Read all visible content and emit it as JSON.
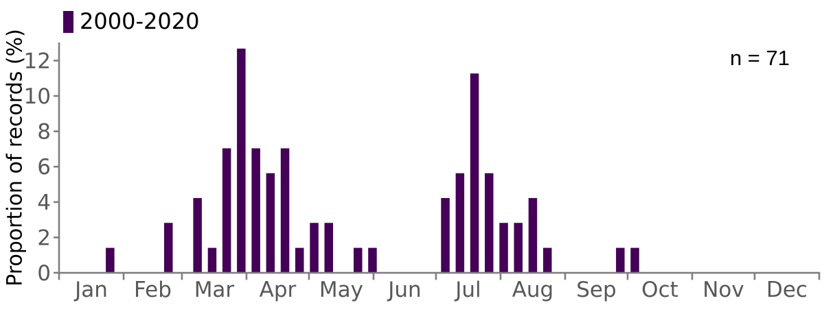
{
  "chart_data": {
    "type": "bar",
    "title": "",
    "legend": {
      "label": "2000-2020",
      "position": "top-left"
    },
    "annotation": "n = 71",
    "n_total": 71,
    "ylabel": "Proportion of records (%)",
    "xlabel": "",
    "x_unit": "week-of-year bins on a day-of-year axis labeled by month",
    "months": [
      "Jan",
      "Feb",
      "Mar",
      "Apr",
      "May",
      "Jun",
      "Jul",
      "Aug",
      "Sep",
      "Oct",
      "Nov",
      "Dec"
    ],
    "month_boundary_days": [
      0,
      31,
      59,
      90,
      120,
      151,
      181,
      212,
      243,
      273,
      304,
      334,
      365
    ],
    "y_ticks": [
      0,
      2,
      4,
      6,
      8,
      10,
      12
    ],
    "ylim": [
      0,
      13
    ],
    "grid": false,
    "bars": [
      {
        "week": 4,
        "count": 1,
        "pct": 1.41
      },
      {
        "week": 8,
        "count": 2,
        "pct": 2.82
      },
      {
        "week": 10,
        "count": 3,
        "pct": 4.23
      },
      {
        "week": 11,
        "count": 1,
        "pct": 1.41
      },
      {
        "week": 12,
        "count": 5,
        "pct": 7.04
      },
      {
        "week": 13,
        "count": 9,
        "pct": 12.68
      },
      {
        "week": 14,
        "count": 5,
        "pct": 7.04
      },
      {
        "week": 15,
        "count": 4,
        "pct": 5.63
      },
      {
        "week": 16,
        "count": 5,
        "pct": 7.04
      },
      {
        "week": 17,
        "count": 1,
        "pct": 1.41
      },
      {
        "week": 18,
        "count": 2,
        "pct": 2.82
      },
      {
        "week": 19,
        "count": 2,
        "pct": 2.82
      },
      {
        "week": 21,
        "count": 1,
        "pct": 1.41
      },
      {
        "week": 22,
        "count": 1,
        "pct": 1.41
      },
      {
        "week": 27,
        "count": 3,
        "pct": 4.23
      },
      {
        "week": 28,
        "count": 4,
        "pct": 5.63
      },
      {
        "week": 29,
        "count": 8,
        "pct": 11.27
      },
      {
        "week": 30,
        "count": 4,
        "pct": 5.63
      },
      {
        "week": 31,
        "count": 2,
        "pct": 2.82
      },
      {
        "week": 32,
        "count": 2,
        "pct": 2.82
      },
      {
        "week": 33,
        "count": 3,
        "pct": 4.23
      },
      {
        "week": 34,
        "count": 1,
        "pct": 1.41
      },
      {
        "week": 39,
        "count": 1,
        "pct": 1.41
      },
      {
        "week": 40,
        "count": 1,
        "pct": 1.41
      }
    ],
    "colors": {
      "bar": "#440157",
      "axis": "#7f7f7f",
      "axis_text": "#58585a",
      "text": "#000000",
      "background": "#ffffff"
    }
  }
}
